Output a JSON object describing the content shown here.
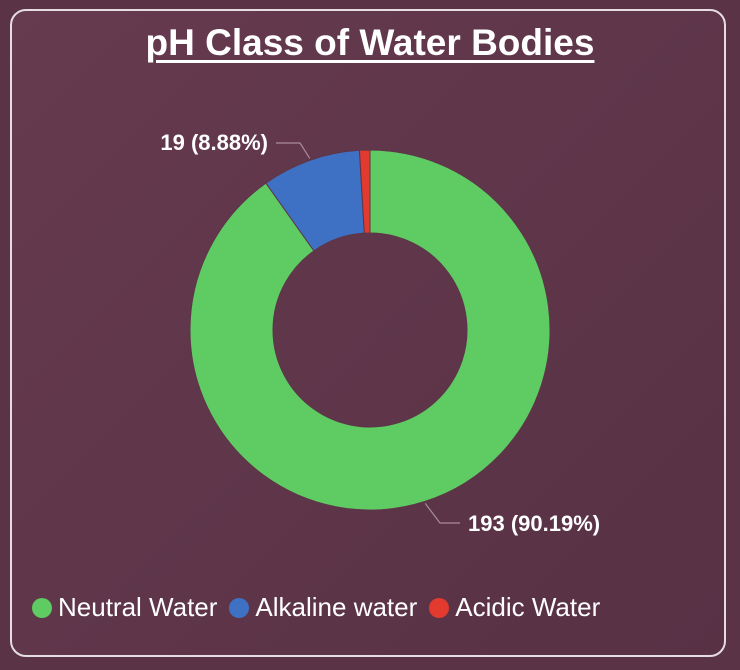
{
  "chart_data": {
    "type": "donut",
    "title": "pH Class of Water Bodies",
    "series": [
      {
        "name": "Neutral Water",
        "value": 193,
        "percent": 90.19,
        "color": "#5ecb63",
        "label": "193 (90.19%)"
      },
      {
        "name": "Alkaline water",
        "value": 19,
        "percent": 8.88,
        "color": "#3e71c4",
        "label": "19 (8.88%)"
      },
      {
        "name": "Acidic Water",
        "value": 2,
        "percent": 0.93,
        "color": "#e23a2e",
        "label": ""
      }
    ],
    "legend_position": "bottom-left"
  }
}
